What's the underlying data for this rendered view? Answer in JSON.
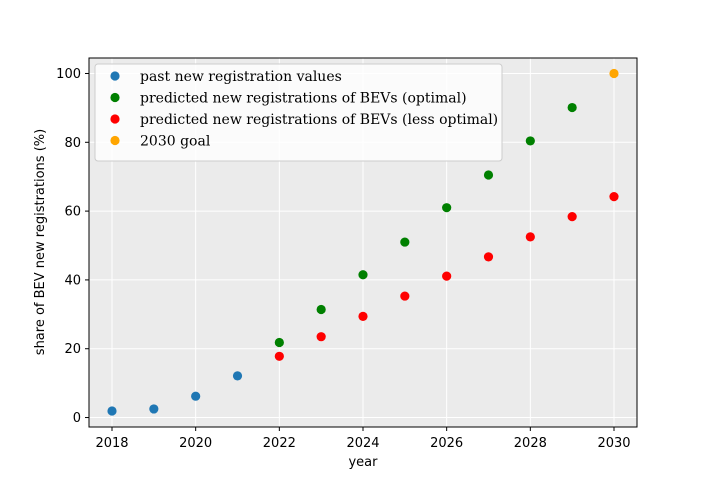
{
  "chart_data": {
    "type": "scatter",
    "xlabel": "year",
    "ylabel": "share of BEV new registrations (%)",
    "xlim": [
      2017.45,
      2030.55
    ],
    "ylim": [
      -2.75,
      104.5
    ],
    "xticks": [
      2018,
      2020,
      2022,
      2024,
      2026,
      2028,
      2030
    ],
    "yticks": [
      0,
      20,
      40,
      60,
      80,
      100
    ],
    "grid": true,
    "background": "#ebebeb",
    "legend_position": "upper-left",
    "series": [
      {
        "name": "past new registration values",
        "color": "#1f77b4",
        "x": [
          2018,
          2019,
          2020,
          2021
        ],
        "y": [
          1.9,
          2.5,
          6.2,
          12.1
        ]
      },
      {
        "name": "predicted new registrations of BEVs (optimal)",
        "color": "#008000",
        "x": [
          2022,
          2023,
          2024,
          2025,
          2026,
          2027,
          2028,
          2029
        ],
        "y": [
          21.8,
          31.4,
          41.5,
          51.0,
          61.0,
          70.5,
          80.4,
          90.1
        ]
      },
      {
        "name": "predicted new registrations of BEVs (less optimal)",
        "color": "#ff0000",
        "x": [
          2022,
          2023,
          2024,
          2025,
          2026,
          2027,
          2028,
          2029,
          2030
        ],
        "y": [
          17.8,
          23.5,
          29.4,
          35.3,
          41.1,
          46.7,
          52.5,
          58.4,
          64.2
        ]
      },
      {
        "name": "2030 goal",
        "color": "#ffa500",
        "x": [
          2030
        ],
        "y": [
          100
        ]
      }
    ]
  }
}
